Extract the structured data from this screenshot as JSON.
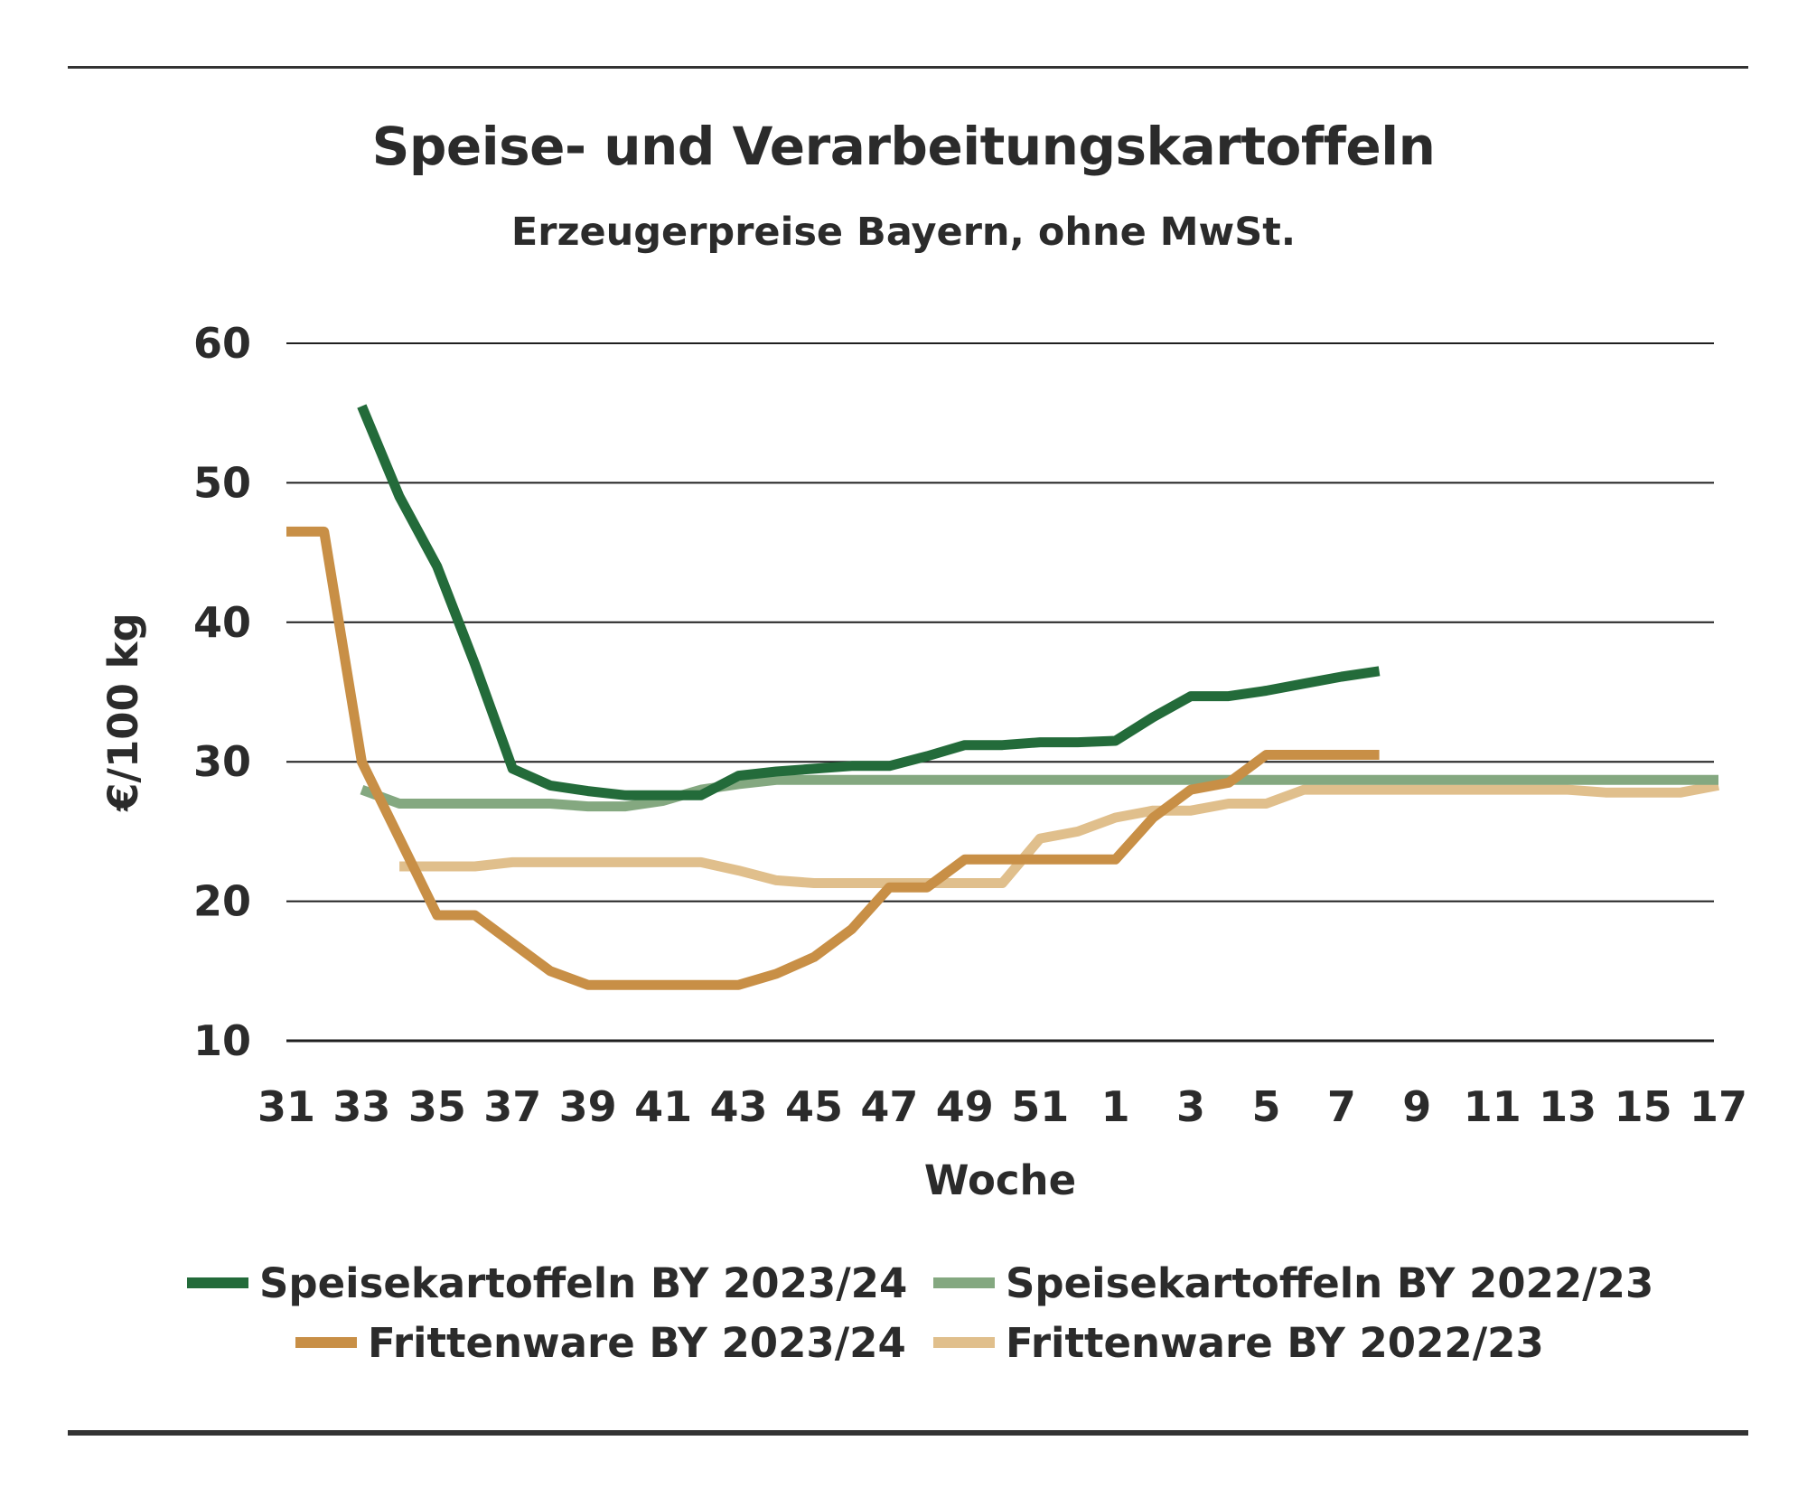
{
  "chart_data": {
    "type": "line",
    "title": "Speise- und Verarbeitungskartoffeln",
    "subtitle": "Erzeugerpreise Bayern, ohne MwSt.",
    "xlabel": "Woche",
    "ylabel": "€/100 kg",
    "ylim": [
      10,
      60
    ],
    "yticks": [
      10,
      20,
      30,
      40,
      50,
      60
    ],
    "grid": true,
    "legend_position": "bottom",
    "categories": [
      "31",
      "32",
      "33",
      "34",
      "35",
      "36",
      "37",
      "38",
      "39",
      "40",
      "41",
      "42",
      "43",
      "44",
      "45",
      "46",
      "47",
      "48",
      "49",
      "50",
      "51",
      "52",
      "1",
      "2",
      "3",
      "4",
      "5",
      "6",
      "7",
      "8",
      "9",
      "10",
      "11",
      "12",
      "13",
      "14",
      "15",
      "16",
      "17"
    ],
    "tick_labels": [
      "31",
      "33",
      "35",
      "37",
      "39",
      "41",
      "43",
      "45",
      "47",
      "49",
      "51",
      "1",
      "3",
      "5",
      "7",
      "9",
      "11",
      "13",
      "15",
      "17"
    ],
    "series": [
      {
        "name": "Speisekartoffeln BY 2023/24",
        "color": "#236b3a",
        "values": [
          null,
          null,
          55.5,
          49,
          44,
          37,
          29.5,
          28.3,
          27.9,
          27.6,
          27.6,
          27.6,
          29,
          29.3,
          29.5,
          29.7,
          29.7,
          30.4,
          31.2,
          31.2,
          31.4,
          31.4,
          31.5,
          33.2,
          34.7,
          34.7,
          35.1,
          35.6,
          36.1,
          36.5,
          null,
          null,
          null,
          null,
          null,
          null,
          null,
          null,
          null
        ]
      },
      {
        "name": "Speisekartoffeln BY 2022/23",
        "color": "#84a880",
        "values": [
          null,
          null,
          28,
          27,
          27,
          27,
          27,
          27,
          26.8,
          26.8,
          27.2,
          28,
          28.4,
          28.7,
          28.7,
          28.7,
          28.7,
          28.7,
          28.7,
          28.7,
          28.7,
          28.7,
          28.7,
          28.7,
          28.7,
          28.7,
          28.7,
          28.7,
          28.7,
          28.7,
          28.7,
          28.7,
          28.7,
          28.7,
          28.7,
          28.7,
          28.7,
          28.7,
          28.7
        ]
      },
      {
        "name": "Frittenware BY 2023/24",
        "color": "#c88f46",
        "values": [
          46.5,
          46.5,
          30,
          24.5,
          19,
          19,
          17,
          15,
          14,
          14,
          14,
          14,
          14,
          14.8,
          16,
          18,
          21,
          21,
          23,
          23,
          23,
          23,
          23,
          26,
          28,
          28.5,
          30.5,
          30.5,
          30.5,
          30.5,
          null,
          null,
          null,
          null,
          null,
          null,
          null,
          null,
          null
        ]
      },
      {
        "name": "Frittenware BY 2022/23",
        "color": "#e0bf8c",
        "values": [
          null,
          null,
          null,
          22.5,
          22.5,
          22.5,
          22.8,
          22.8,
          22.8,
          22.8,
          22.8,
          22.8,
          22.2,
          21.5,
          21.3,
          21.3,
          21.3,
          21.3,
          21.3,
          21.3,
          24.5,
          25,
          26,
          26.5,
          26.5,
          27,
          27,
          28,
          28,
          28,
          28,
          28,
          28,
          28,
          28,
          27.8,
          27.8,
          27.8,
          28.3
        ]
      }
    ]
  }
}
